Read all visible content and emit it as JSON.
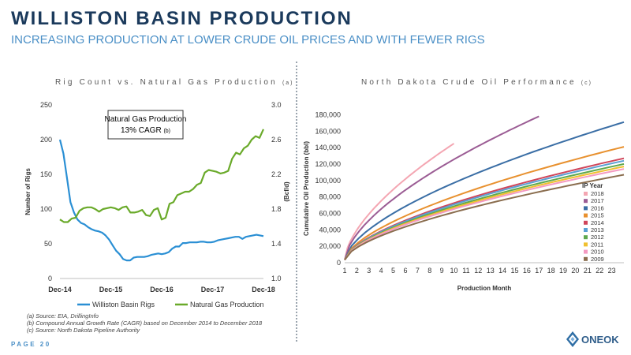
{
  "header": {
    "title": "WILLISTON BASIN PRODUCTION",
    "subtitle": "INCREASING PRODUCTION AT LOWER CRUDE OIL PRICES AND WITH FEWER RIGS"
  },
  "left_chart_title": {
    "text": "Rig Count vs. Natural Gas Production",
    "note": "(a)"
  },
  "right_chart_title": {
    "text": "North Dakota Crude Oil Performance",
    "note": "(c)"
  },
  "callout": {
    "line1": "Natural Gas Production",
    "line2": "13% CAGR",
    "note": "(b)"
  },
  "footnotes": [
    "(a) Source: EIA, DrillingInfo",
    "(b) Compound Annual Growth Rate (CAGR) based on December 2014 to December 2018",
    "(c) Source: North Dakota Pipeline Authority"
  ],
  "page": "PAGE 20",
  "logo": "ONEOK",
  "chart_data": [
    {
      "type": "line",
      "title": "Rig Count vs. Natural Gas Production",
      "ylabel": "Number of Rigs",
      "y2label": "(Bcf/d)",
      "xlabel": "",
      "x_ticks": [
        "Dec-14",
        "Dec-15",
        "Dec-16",
        "Dec-17",
        "Dec-18"
      ],
      "ylim": [
        0,
        250
      ],
      "y_ticks": [
        0,
        50,
        100,
        150,
        200,
        250
      ],
      "y2lim": [
        1.0,
        3.0
      ],
      "y2_ticks": [
        "1.0",
        "1.4",
        "1.8",
        "2.2",
        "2.6",
        "3.0"
      ],
      "legend_position": "bottom",
      "grid": false,
      "series": [
        {
          "name": "Williston Basin Rigs",
          "color": "#2a8fd4",
          "axis": "left",
          "values": [
            200,
            180,
            145,
            110,
            95,
            85,
            80,
            78,
            74,
            71,
            69,
            68,
            66,
            62,
            56,
            48,
            40,
            35,
            28,
            26,
            26,
            30,
            31,
            31,
            31,
            32,
            34,
            35,
            36,
            35,
            36,
            38,
            43,
            46,
            46,
            51,
            51,
            52,
            52,
            52,
            53,
            53,
            52,
            52,
            53,
            55,
            56,
            57,
            58,
            59,
            60,
            60,
            57,
            60,
            61,
            62,
            63,
            62,
            61
          ]
        },
        {
          "name": "Natural Gas Production",
          "color": "#6aaa2a",
          "axis": "right",
          "values": [
            1.68,
            1.65,
            1.65,
            1.69,
            1.7,
            1.78,
            1.81,
            1.82,
            1.82,
            1.8,
            1.77,
            1.8,
            1.81,
            1.82,
            1.81,
            1.79,
            1.82,
            1.83,
            1.76,
            1.76,
            1.77,
            1.79,
            1.73,
            1.72,
            1.79,
            1.81,
            1.68,
            1.7,
            1.86,
            1.88,
            1.96,
            1.98,
            2.0,
            2.0,
            2.03,
            2.08,
            2.1,
            2.22,
            2.25,
            2.24,
            2.23,
            2.21,
            2.22,
            2.24,
            2.38,
            2.45,
            2.43,
            2.5,
            2.53,
            2.6,
            2.64,
            2.62,
            2.72
          ]
        }
      ]
    },
    {
      "type": "line",
      "title": "North Dakota Crude Oil Performance",
      "xlabel": "Production Month",
      "ylabel": "Cumulative Oil Production (bbl)",
      "x_ticks": [
        "1",
        "2",
        "3",
        "4",
        "5",
        "6",
        "7",
        "8",
        "9",
        "10",
        "11",
        "12",
        "13",
        "14",
        "15",
        "16",
        "17",
        "18",
        "19",
        "20",
        "21",
        "22",
        "23"
      ],
      "xlim": [
        1,
        24
      ],
      "ylim": [
        0,
        190000
      ],
      "y_ticks": [
        "0",
        "20,000",
        "40,000",
        "60,000",
        "80,000",
        "100,000",
        "120,000",
        "140,000",
        "160,000",
        "180,000"
      ],
      "legend_title": "IP Year",
      "legend_position": "right",
      "grid": false,
      "series": [
        {
          "name": "2018",
          "color": "#f4a6b2",
          "months": 10,
          "final": 145000
        },
        {
          "name": "2017",
          "color": "#9b5c94",
          "months": 17,
          "final": 178000
        },
        {
          "name": "2016",
          "color": "#3a6ea5",
          "months": 24,
          "final": 171000
        },
        {
          "name": "2015",
          "color": "#e8912f",
          "months": 24,
          "final": 141000
        },
        {
          "name": "2014",
          "color": "#d0455a",
          "months": 24,
          "final": 127000
        },
        {
          "name": "2013",
          "color": "#5aa0d4",
          "months": 24,
          "final": 124000
        },
        {
          "name": "2012",
          "color": "#5ea84e",
          "months": 24,
          "final": 120000
        },
        {
          "name": "2011",
          "color": "#f0c030",
          "months": 24,
          "final": 117000
        },
        {
          "name": "2010",
          "color": "#f49ac1",
          "months": 24,
          "final": 114000
        },
        {
          "name": "2009",
          "color": "#8a6d4e",
          "months": 24,
          "final": 107000
        }
      ]
    }
  ]
}
